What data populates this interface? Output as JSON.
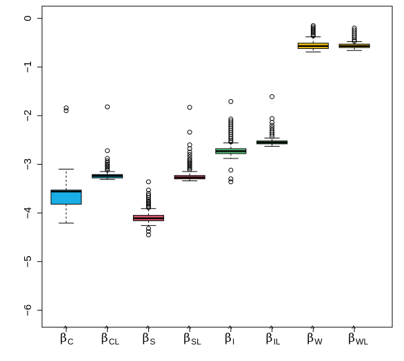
{
  "chart_data": {
    "type": "box",
    "title": "",
    "xlabel": "",
    "ylabel": "",
    "ylim": [
      -6.35,
      0.25
    ],
    "yticks": [
      0,
      -1,
      -2,
      -3,
      -4,
      -5,
      -6
    ],
    "ytick_labels": [
      "0",
      "−1",
      "−2",
      "−3",
      "−4",
      "−5",
      "−6"
    ],
    "grid": false,
    "categories": [
      {
        "symbol": "β",
        "sub": "C"
      },
      {
        "symbol": "β",
        "sub": "CL"
      },
      {
        "symbol": "β",
        "sub": "S"
      },
      {
        "symbol": "β",
        "sub": "SL"
      },
      {
        "symbol": "β",
        "sub": "I"
      },
      {
        "symbol": "β",
        "sub": "IL"
      },
      {
        "symbol": "β",
        "sub": "W"
      },
      {
        "symbol": "β",
        "sub": "WL"
      }
    ],
    "boxes": [
      {
        "color": "#1aaee6",
        "whisker_low": -4.21,
        "q1": -3.82,
        "median": -3.56,
        "q3": -3.53,
        "whisker_high": -3.1,
        "outliers": [
          -1.84,
          -1.9
        ]
      },
      {
        "color": "#1ba3c8",
        "whisker_low": -3.31,
        "q1": -3.28,
        "median": -3.24,
        "q3": -3.21,
        "whisker_high": -3.15,
        "outliers": [
          -1.82,
          -2.72,
          -2.88,
          -2.93,
          -2.97,
          -3.0,
          -3.03,
          -3.06,
          -3.09,
          -3.12
        ]
      },
      {
        "color": "#d65a6e",
        "whisker_low": -4.26,
        "q1": -4.16,
        "median": -4.11,
        "q3": -4.05,
        "whisker_high": -3.91,
        "outliers": [
          -3.36,
          -3.53,
          -3.6,
          -3.64,
          -3.68,
          -3.72,
          -3.75,
          -3.78,
          -3.81,
          -3.84,
          -3.87,
          -3.89,
          -4.32,
          -4.38,
          -4.45
        ]
      },
      {
        "color": "#e8607a",
        "whisker_low": -3.34,
        "q1": -3.3,
        "median": -3.27,
        "q3": -3.23,
        "whisker_high": -3.15,
        "outliers": [
          -1.83,
          -2.34,
          -2.6,
          -2.68,
          -2.75,
          -2.8,
          -2.85,
          -2.9,
          -2.93,
          -2.96,
          -2.99,
          -3.02,
          -3.05,
          -3.08,
          -3.11
        ]
      },
      {
        "color": "#5cc882",
        "whisker_low": -2.88,
        "q1": -2.78,
        "median": -2.73,
        "q3": -2.68,
        "whisker_high": -2.56,
        "outliers": [
          -1.71,
          -2.07,
          -2.11,
          -2.15,
          -2.19,
          -2.23,
          -2.27,
          -2.31,
          -2.35,
          -2.39,
          -2.43,
          -2.47,
          -2.51,
          -2.54,
          -3.12,
          -3.3,
          -3.36
        ]
      },
      {
        "color": "#4cc07c",
        "whisker_low": -2.63,
        "q1": -2.58,
        "median": -2.55,
        "q3": -2.52,
        "whisker_high": -2.46,
        "outliers": [
          -1.61,
          -2.06,
          -2.14,
          -2.2,
          -2.25,
          -2.3,
          -2.34,
          -2.38,
          -2.42
        ]
      },
      {
        "color": "#f2c418",
        "whisker_low": -0.69,
        "q1": -0.62,
        "median": -0.57,
        "q3": -0.51,
        "whisker_high": -0.38,
        "outliers": [
          -0.15,
          -0.18,
          -0.21,
          -0.24,
          -0.27,
          -0.3,
          -0.33,
          -0.36
        ]
      },
      {
        "color": "#e8b920",
        "whisker_low": -0.66,
        "q1": -0.6,
        "median": -0.57,
        "q3": -0.53,
        "whisker_high": -0.48,
        "outliers": [
          -0.2,
          -0.24,
          -0.28,
          -0.32,
          -0.36,
          -0.4,
          -0.44,
          -0.47
        ]
      }
    ]
  }
}
